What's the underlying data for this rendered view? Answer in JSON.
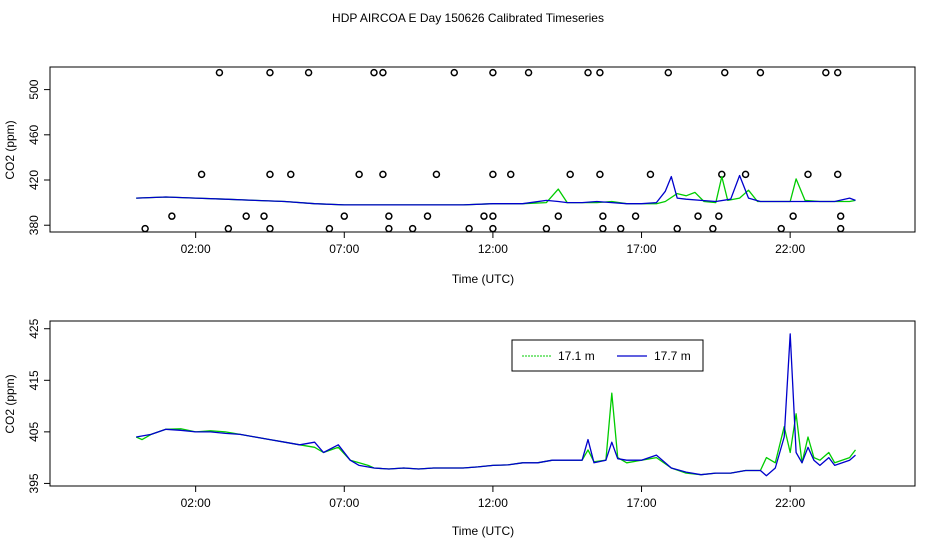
{
  "title": "HDP AIRCOA E  Day 150626  Calibrated Timeseries",
  "colors": {
    "green": "#00cc00",
    "blue": "#0000cc",
    "axis": "#000000"
  },
  "chart_data": [
    {
      "type": "line",
      "xlabel": "Time (UTC)",
      "ylabel": "CO2 (ppm)",
      "x_unit": "hours UTC",
      "xlim": [
        -2.9,
        26.2
      ],
      "ylim": [
        374,
        520
      ],
      "xticks": [
        2,
        7,
        12,
        17,
        22
      ],
      "xtick_labels": [
        "02:00",
        "07:00",
        "12:00",
        "17:00",
        "22:00"
      ],
      "yticks": [
        380,
        420,
        460,
        500
      ],
      "series": [
        {
          "color": "#00cc00",
          "points": [
            [
              0,
              404
            ],
            [
              1,
              405
            ],
            [
              2,
              404
            ],
            [
              3,
              403
            ],
            [
              4,
              402
            ],
            [
              5,
              401
            ],
            [
              6,
              399
            ],
            [
              7,
              398
            ],
            [
              8,
              398
            ],
            [
              9,
              398
            ],
            [
              10,
              398
            ],
            [
              11,
              398
            ],
            [
              12,
              399
            ],
            [
              13,
              399
            ],
            [
              13.8,
              400
            ],
            [
              14.2,
              412
            ],
            [
              14.5,
              400
            ],
            [
              15,
              400
            ],
            [
              15.5,
              400
            ],
            [
              16,
              401
            ],
            [
              16.5,
              399
            ],
            [
              17,
              399
            ],
            [
              17.5,
              399
            ],
            [
              17.8,
              401
            ],
            [
              18.2,
              408
            ],
            [
              18.5,
              406
            ],
            [
              18.8,
              409
            ],
            [
              19.1,
              401
            ],
            [
              19.5,
              400
            ],
            [
              19.7,
              423
            ],
            [
              19.9,
              402
            ],
            [
              20.3,
              404
            ],
            [
              20.6,
              411
            ],
            [
              20.9,
              401
            ],
            [
              21.5,
              401
            ],
            [
              22,
              401
            ],
            [
              22.2,
              421
            ],
            [
              22.5,
              402
            ],
            [
              23,
              401
            ],
            [
              23.5,
              401
            ],
            [
              24,
              401
            ],
            [
              24.2,
              402
            ]
          ]
        },
        {
          "color": "#0000cc",
          "points": [
            [
              0,
              404
            ],
            [
              1,
              405
            ],
            [
              2,
              404
            ],
            [
              3,
              403
            ],
            [
              4,
              402
            ],
            [
              5,
              401
            ],
            [
              6,
              399
            ],
            [
              7,
              398
            ],
            [
              8,
              398
            ],
            [
              9,
              398
            ],
            [
              10,
              398
            ],
            [
              11,
              398
            ],
            [
              12,
              399
            ],
            [
              13,
              399
            ],
            [
              13.8,
              402
            ],
            [
              14.2,
              401
            ],
            [
              14.5,
              400
            ],
            [
              15,
              400
            ],
            [
              15.5,
              401
            ],
            [
              16,
              400
            ],
            [
              16.5,
              399
            ],
            [
              17,
              399
            ],
            [
              17.5,
              400
            ],
            [
              17.8,
              410
            ],
            [
              18,
              423
            ],
            [
              18.2,
              404
            ],
            [
              18.5,
              403
            ],
            [
              19,
              402
            ],
            [
              19.5,
              401
            ],
            [
              20,
              403
            ],
            [
              20.3,
              424
            ],
            [
              20.6,
              404
            ],
            [
              21,
              401
            ],
            [
              21.5,
              401
            ],
            [
              22,
              401
            ],
            [
              22.5,
              401
            ],
            [
              23,
              401
            ],
            [
              23.5,
              401
            ],
            [
              24,
              404
            ],
            [
              24.2,
              402
            ]
          ]
        }
      ],
      "outliers": [
        [
          0.3,
          377
        ],
        [
          1.2,
          388
        ],
        [
          2.2,
          425
        ],
        [
          2.8,
          515
        ],
        [
          3.1,
          377
        ],
        [
          3.7,
          388
        ],
        [
          4.3,
          388
        ],
        [
          4.5,
          377
        ],
        [
          4.5,
          425
        ],
        [
          4.5,
          515
        ],
        [
          5.2,
          425
        ],
        [
          5.8,
          515
        ],
        [
          6.5,
          377
        ],
        [
          7,
          388
        ],
        [
          7.5,
          425
        ],
        [
          8,
          515
        ],
        [
          8.3,
          515
        ],
        [
          8.3,
          425
        ],
        [
          8.5,
          388
        ],
        [
          8.5,
          377
        ],
        [
          9.3,
          377
        ],
        [
          9.8,
          388
        ],
        [
          10.1,
          425
        ],
        [
          10.7,
          515
        ],
        [
          11.2,
          377
        ],
        [
          11.7,
          388
        ],
        [
          12,
          515
        ],
        [
          12,
          425
        ],
        [
          12,
          388
        ],
        [
          12,
          377
        ],
        [
          12.6,
          425
        ],
        [
          13.2,
          515
        ],
        [
          13.8,
          377
        ],
        [
          14.2,
          388
        ],
        [
          14.6,
          425
        ],
        [
          15.2,
          515
        ],
        [
          15.6,
          515
        ],
        [
          15.6,
          425
        ],
        [
          15.7,
          388
        ],
        [
          15.7,
          377
        ],
        [
          16.3,
          377
        ],
        [
          16.8,
          388
        ],
        [
          17.3,
          425
        ],
        [
          17.9,
          515
        ],
        [
          18.2,
          377
        ],
        [
          18.9,
          388
        ],
        [
          19.4,
          377
        ],
        [
          19.6,
          388
        ],
        [
          19.7,
          425
        ],
        [
          19.8,
          515
        ],
        [
          20.5,
          425
        ],
        [
          21,
          515
        ],
        [
          21.7,
          377
        ],
        [
          22.1,
          388
        ],
        [
          22.6,
          425
        ],
        [
          23.2,
          515
        ],
        [
          23.6,
          515
        ],
        [
          23.6,
          425
        ],
        [
          23.7,
          388
        ],
        [
          23.7,
          377
        ]
      ]
    },
    {
      "type": "line",
      "xlabel": "Time (UTC)",
      "ylabel": "CO2 (ppm)",
      "x_unit": "hours UTC",
      "xlim": [
        -2.9,
        26.2
      ],
      "ylim": [
        394.5,
        426.5
      ],
      "xticks": [
        2,
        7,
        12,
        17,
        22
      ],
      "xtick_labels": [
        "02:00",
        "07:00",
        "12:00",
        "17:00",
        "22:00"
      ],
      "yticks": [
        395,
        405,
        415,
        425
      ],
      "legend": {
        "placement": "top-right",
        "entries": [
          "17.1 m",
          "17.7 m"
        ]
      },
      "series": [
        {
          "name": "17.1 m",
          "color": "#00cc00",
          "points": [
            [
              0,
              404
            ],
            [
              0.2,
              403.5
            ],
            [
              0.5,
              404.5
            ],
            [
              1,
              405.5
            ],
            [
              1.5,
              405.6
            ],
            [
              2,
              405
            ],
            [
              2.5,
              405.2
            ],
            [
              3,
              405
            ],
            [
              3.5,
              404.5
            ],
            [
              4,
              404
            ],
            [
              4.5,
              403.5
            ],
            [
              5,
              403
            ],
            [
              5.5,
              402.5
            ],
            [
              6,
              402
            ],
            [
              6.3,
              401
            ],
            [
              6.8,
              402
            ],
            [
              7.2,
              399.5
            ],
            [
              7.5,
              399
            ],
            [
              7.8,
              398.5
            ],
            [
              8,
              398
            ],
            [
              8.5,
              397.8
            ],
            [
              9,
              398
            ],
            [
              9.5,
              397.8
            ],
            [
              10,
              398
            ],
            [
              10.5,
              398
            ],
            [
              11,
              398
            ],
            [
              11.5,
              398.2
            ],
            [
              12,
              398.5
            ],
            [
              12.5,
              398.6
            ],
            [
              13,
              399
            ],
            [
              13.5,
              399
            ],
            [
              14,
              399.5
            ],
            [
              14.5,
              399.5
            ],
            [
              15,
              399.5
            ],
            [
              15.2,
              401.5
            ],
            [
              15.4,
              399.2
            ],
            [
              15.8,
              399.5
            ],
            [
              16,
              412.5
            ],
            [
              16.2,
              400
            ],
            [
              16.5,
              399
            ],
            [
              17,
              399.5
            ],
            [
              17.5,
              400
            ],
            [
              18,
              398
            ],
            [
              18.5,
              397
            ],
            [
              19,
              396.7
            ],
            [
              19.5,
              397
            ],
            [
              20,
              397
            ],
            [
              20.5,
              397.5
            ],
            [
              21,
              397.5
            ],
            [
              21.2,
              400
            ],
            [
              21.5,
              399
            ],
            [
              21.8,
              406
            ],
            [
              22,
              401
            ],
            [
              22.2,
              408.5
            ],
            [
              22.4,
              399
            ],
            [
              22.6,
              404
            ],
            [
              22.8,
              400
            ],
            [
              23,
              399.5
            ],
            [
              23.3,
              401
            ],
            [
              23.5,
              399
            ],
            [
              24,
              400
            ],
            [
              24.2,
              401.5
            ]
          ]
        },
        {
          "name": "17.7 m",
          "color": "#0000cc",
          "points": [
            [
              0,
              404
            ],
            [
              0.5,
              404.5
            ],
            [
              1,
              405.5
            ],
            [
              1.5,
              405.3
            ],
            [
              2,
              405
            ],
            [
              2.5,
              405
            ],
            [
              3,
              404.7
            ],
            [
              3.5,
              404.5
            ],
            [
              4,
              404
            ],
            [
              4.5,
              403.5
            ],
            [
              5,
              403
            ],
            [
              5.5,
              402.5
            ],
            [
              6,
              403
            ],
            [
              6.3,
              401
            ],
            [
              6.8,
              402.5
            ],
            [
              7.2,
              399.5
            ],
            [
              7.5,
              398.5
            ],
            [
              8,
              398
            ],
            [
              8.5,
              397.8
            ],
            [
              9,
              398
            ],
            [
              9.5,
              397.8
            ],
            [
              10,
              398
            ],
            [
              10.5,
              398
            ],
            [
              11,
              398
            ],
            [
              11.5,
              398.2
            ],
            [
              12,
              398.5
            ],
            [
              12.5,
              398.6
            ],
            [
              13,
              399
            ],
            [
              13.5,
              399
            ],
            [
              14,
              399.5
            ],
            [
              14.5,
              399.5
            ],
            [
              15,
              399.5
            ],
            [
              15.2,
              403.5
            ],
            [
              15.4,
              399
            ],
            [
              15.8,
              399.5
            ],
            [
              16,
              403
            ],
            [
              16.2,
              399.8
            ],
            [
              16.5,
              399.5
            ],
            [
              17,
              399.5
            ],
            [
              17.5,
              400.5
            ],
            [
              18,
              398
            ],
            [
              18.5,
              397.2
            ],
            [
              19,
              396.7
            ],
            [
              19.5,
              397
            ],
            [
              20,
              397
            ],
            [
              20.5,
              397.5
            ],
            [
              21,
              397.5
            ],
            [
              21.2,
              396.5
            ],
            [
              21.5,
              398
            ],
            [
              21.8,
              404
            ],
            [
              22,
              424
            ],
            [
              22.2,
              401
            ],
            [
              22.4,
              399
            ],
            [
              22.6,
              402
            ],
            [
              22.8,
              399.5
            ],
            [
              23,
              398.5
            ],
            [
              23.3,
              400
            ],
            [
              23.5,
              398.5
            ],
            [
              24,
              399.5
            ],
            [
              24.2,
              400.5
            ]
          ]
        }
      ]
    }
  ]
}
